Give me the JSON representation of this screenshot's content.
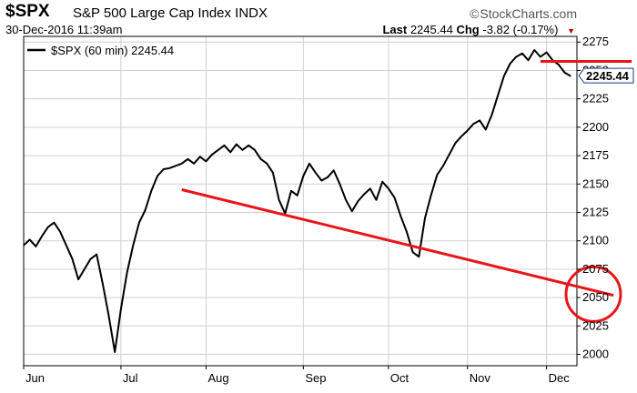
{
  "header": {
    "symbol": "$SPX",
    "index_name": "S&P 500 Large Cap Index INDX",
    "watermark": "StockCharts.com",
    "date": "30-Dec-2016 11:39am",
    "last_label": "Last",
    "last_value": "2245.44",
    "chg_label": "Chg",
    "chg_value": "-3.82 (-0.17%)"
  },
  "legend": {
    "text": "$SPX (60 min) 2245.44"
  },
  "colors": {
    "price_line": "#000000",
    "annotation_red": "#e8151b",
    "grid": "#d0d0d0",
    "last_price_tag": "#1a3a8a"
  },
  "chart_data": {
    "type": "line",
    "title": "$SPX S&P 500 Large Cap Index INDX",
    "series": [
      {
        "name": "$SPX (60 min)",
        "points": [
          [
            0,
            2096
          ],
          [
            1,
            2101
          ],
          [
            2,
            2095
          ],
          [
            3,
            2104
          ],
          [
            4,
            2112
          ],
          [
            5,
            2116
          ],
          [
            6,
            2108
          ],
          [
            7,
            2096
          ],
          [
            8,
            2084
          ],
          [
            9,
            2066
          ],
          [
            10,
            2075
          ],
          [
            11,
            2084
          ],
          [
            12,
            2088
          ],
          [
            13,
            2062
          ],
          [
            14,
            2034
          ],
          [
            15,
            2002
          ],
          [
            16,
            2040
          ],
          [
            17,
            2072
          ],
          [
            18,
            2096
          ],
          [
            19,
            2116
          ],
          [
            20,
            2127
          ],
          [
            21,
            2144
          ],
          [
            22,
            2157
          ],
          [
            23,
            2163
          ],
          [
            24,
            2164
          ],
          [
            25,
            2166
          ],
          [
            26,
            2168
          ],
          [
            27,
            2172
          ],
          [
            28,
            2168
          ],
          [
            29,
            2174
          ],
          [
            30,
            2170
          ],
          [
            31,
            2176
          ],
          [
            32,
            2180
          ],
          [
            33,
            2184
          ],
          [
            34,
            2178
          ],
          [
            35,
            2185
          ],
          [
            36,
            2180
          ],
          [
            37,
            2184
          ],
          [
            38,
            2180
          ],
          [
            39,
            2172
          ],
          [
            40,
            2168
          ],
          [
            41,
            2160
          ],
          [
            42,
            2136
          ],
          [
            43,
            2124
          ],
          [
            44,
            2144
          ],
          [
            45,
            2140
          ],
          [
            46,
            2157
          ],
          [
            47,
            2168
          ],
          [
            48,
            2160
          ],
          [
            49,
            2153
          ],
          [
            50,
            2156
          ],
          [
            51,
            2162
          ],
          [
            52,
            2150
          ],
          [
            53,
            2136
          ],
          [
            54,
            2126
          ],
          [
            55,
            2135
          ],
          [
            56,
            2141
          ],
          [
            57,
            2146
          ],
          [
            58,
            2136
          ],
          [
            59,
            2152
          ],
          [
            60,
            2146
          ],
          [
            61,
            2138
          ],
          [
            62,
            2122
          ],
          [
            63,
            2108
          ],
          [
            64,
            2090
          ],
          [
            65,
            2086
          ],
          [
            66,
            2120
          ],
          [
            67,
            2140
          ],
          [
            68,
            2158
          ],
          [
            69,
            2166
          ],
          [
            70,
            2176
          ],
          [
            71,
            2186
          ],
          [
            72,
            2192
          ],
          [
            73,
            2197
          ],
          [
            74,
            2203
          ],
          [
            75,
            2206
          ],
          [
            76,
            2198
          ],
          [
            77,
            2211
          ],
          [
            78,
            2228
          ],
          [
            79,
            2245
          ],
          [
            80,
            2256
          ],
          [
            81,
            2262
          ],
          [
            82,
            2265
          ],
          [
            83,
            2259
          ],
          [
            84,
            2268
          ],
          [
            85,
            2262
          ],
          [
            86,
            2266
          ],
          [
            87,
            2259
          ],
          [
            88,
            2255
          ],
          [
            89,
            2248
          ],
          [
            90,
            2245
          ]
        ]
      }
    ],
    "x_range": [
      0,
      91
    ],
    "x_tick_labels": [
      {
        "label": "Jun",
        "x": 0
      },
      {
        "label": "Jul",
        "x": 16
      },
      {
        "label": "Aug",
        "x": 30
      },
      {
        "label": "Sep",
        "x": 46
      },
      {
        "label": "Oct",
        "x": 60
      },
      {
        "label": "Nov",
        "x": 73
      },
      {
        "label": "Dec",
        "x": 86
      }
    ],
    "ylim": [
      1990,
      2280
    ],
    "y_ticks": [
      2000,
      2025,
      2050,
      2075,
      2100,
      2125,
      2150,
      2175,
      2200,
      2225,
      2250,
      2275
    ],
    "grid": true,
    "last_value_label": "2245.44",
    "annotations": {
      "trendline": {
        "from": [
          26,
          2145
        ],
        "to": [
          97,
          2052
        ]
      },
      "resistance": {
        "from": [
          85,
          2258
        ],
        "to": [
          100,
          2258
        ]
      },
      "circle_at": {
        "y": 2053
      }
    }
  }
}
